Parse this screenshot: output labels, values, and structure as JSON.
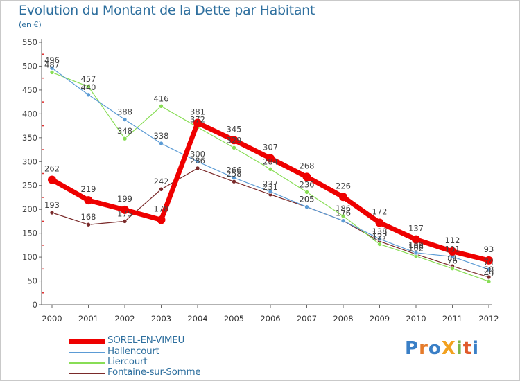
{
  "title": "Evolution du Montant de la Dette par Habitant",
  "subtitle": "(en €)",
  "logo": {
    "text": "ProXiti",
    "letters": [
      {
        "ch": "P",
        "color": "#3a7fc6"
      },
      {
        "ch": "r",
        "color": "#e57b2b"
      },
      {
        "ch": "o",
        "color": "#3a7fc6"
      },
      {
        "ch": "X",
        "color": "#f2a11f"
      },
      {
        "ch": "i",
        "color": "#7ab648"
      },
      {
        "ch": "t",
        "color": "#e05a2b"
      },
      {
        "ch": "i",
        "color": "#3a7fc6"
      }
    ]
  },
  "chart_data": {
    "type": "line",
    "title": "Evolution du Montant de la Dette par Habitant",
    "ylabel": "(en €)",
    "xlabel": "",
    "ylim": [
      0,
      550
    ],
    "yticks": [
      0,
      50,
      100,
      150,
      200,
      250,
      300,
      350,
      400,
      450,
      500,
      550
    ],
    "grid": false,
    "legend_position": "bottom-left",
    "categories": [
      "2000",
      "2001",
      "2002",
      "2003",
      "2004",
      "2005",
      "2006",
      "2007",
      "2008",
      "2009",
      "2010",
      "2011",
      "2012"
    ],
    "series": [
      {
        "name": "SOREL-EN-VIMEU",
        "color": "#ee0000",
        "values": [
          262,
          219,
          199,
          178,
          381,
          345,
          307,
          268,
          226,
          172,
          137,
          112,
          93
        ]
      },
      {
        "name": "Hallencourt",
        "color": "#5b9bd5",
        "values": [
          496,
          440,
          388,
          338,
          300,
          266,
          237,
          205,
          176,
          138,
          109,
          101,
          74
        ]
      },
      {
        "name": "Liercourt",
        "color": "#88dd55",
        "values": [
          487,
          457,
          348,
          416,
          372,
          329,
          284,
          236,
          186,
          127,
          102,
          76,
          49
        ]
      },
      {
        "name": "Fontaine-sur-Somme",
        "color": "#7a2a2a",
        "values": [
          193,
          168,
          175,
          242,
          286,
          258,
          231,
          205,
          176,
          133,
          106,
          81,
          58
        ]
      }
    ]
  }
}
